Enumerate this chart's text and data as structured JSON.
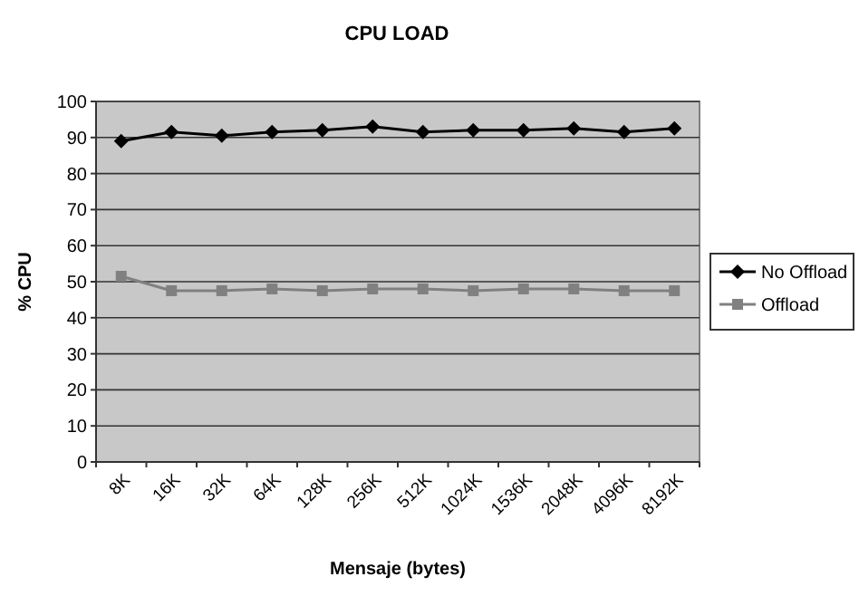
{
  "chart_data": {
    "type": "line",
    "title": "CPU LOAD",
    "xlabel": "Mensaje (bytes)",
    "ylabel": "% CPU",
    "categories": [
      "8K",
      "16K",
      "32K",
      "64K",
      "128K",
      "256K",
      "512K",
      "1024K",
      "1536K",
      "2048K",
      "4096K",
      "8192K"
    ],
    "series": [
      {
        "name": "No Offload",
        "color": "#000000",
        "marker": "diamond",
        "values": [
          89,
          91.5,
          90.5,
          91.5,
          92,
          93,
          91.5,
          92,
          92,
          92.5,
          91.5,
          92.5
        ]
      },
      {
        "name": "Offload",
        "color": "#808080",
        "marker": "square",
        "values": [
          51.5,
          47.5,
          47.5,
          48,
          47.5,
          48,
          48,
          47.5,
          48,
          48,
          47.5,
          47.5
        ]
      }
    ],
    "ylim": [
      0,
      100
    ],
    "yticks": [
      0,
      10,
      20,
      30,
      40,
      50,
      60,
      70,
      80,
      90,
      100
    ],
    "grid": "y",
    "legend": "right"
  }
}
